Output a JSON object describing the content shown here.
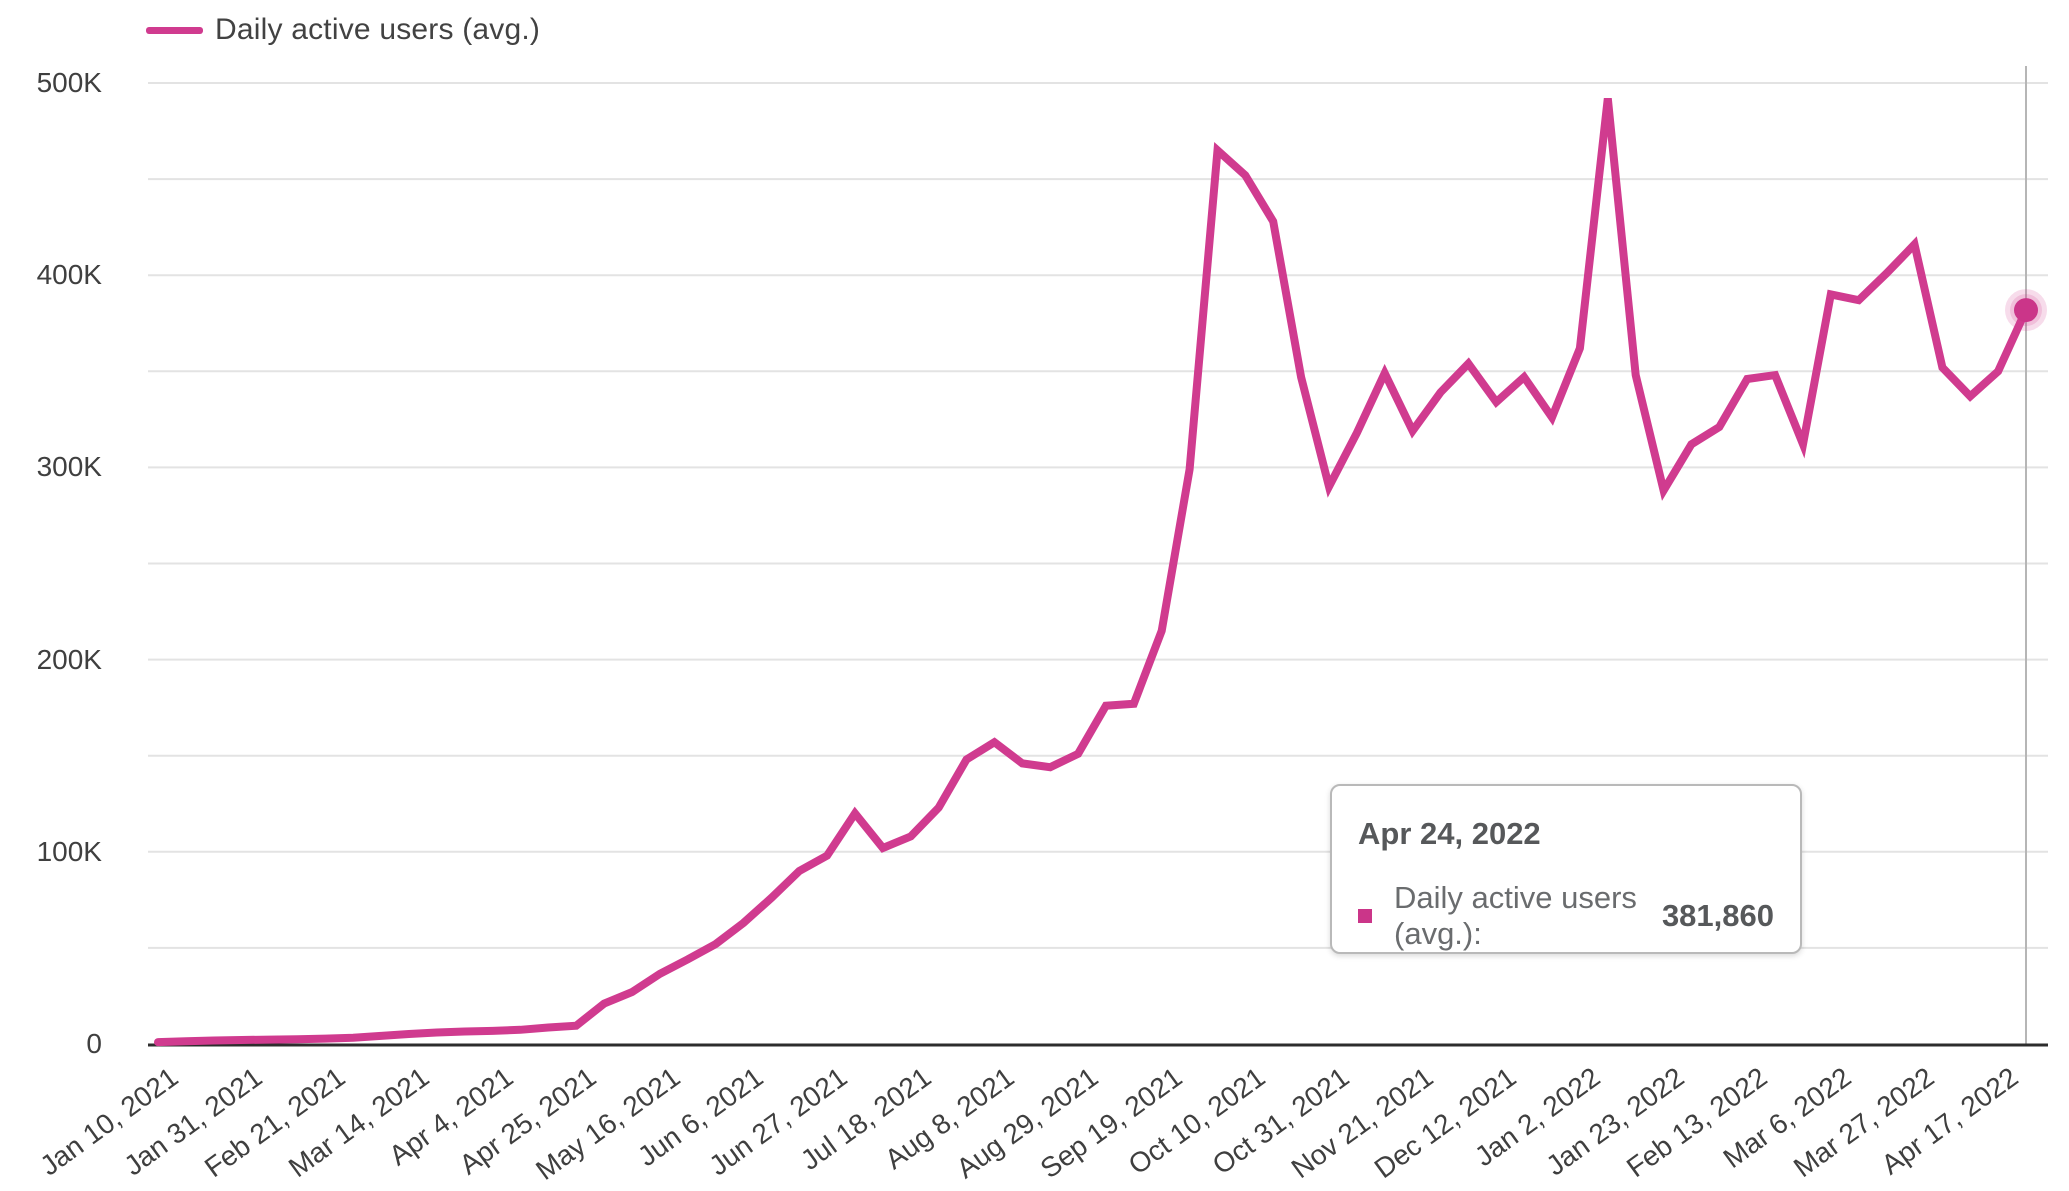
{
  "legend": {
    "label": "Daily active users (avg.)"
  },
  "tooltip": {
    "title": "Apr 24, 2022",
    "series_label": "Daily active users (avg.):",
    "value": "381,860"
  },
  "colors": {
    "line": "#d03b8f",
    "dot": "#cb3589",
    "halo": "rgba(208,59,143,0.18)",
    "grid": "#e3e3e3",
    "axis": "#2d2d2d",
    "crosshair": "#b6b6b6",
    "tick_text": "#3f3f3f"
  },
  "chart_data": {
    "type": "line",
    "title": "",
    "xlabel": "",
    "ylabel": "",
    "legend_position": "top-left",
    "grid": true,
    "ylim": [
      0,
      500000
    ],
    "y_major_step": 100000,
    "y_minor_step": 50000,
    "y_tick_labels": [
      "0",
      "100K",
      "200K",
      "300K",
      "400K",
      "500K"
    ],
    "x_tick_every_n_points": 3,
    "x_tick_labels": [
      "Jan 10, 2021",
      "Jan 31, 2021",
      "Feb 21, 2021",
      "Mar 14, 2021",
      "Apr 4, 2021",
      "Apr 25, 2021",
      "May 16, 2021",
      "Jun 6, 2021",
      "Jun 27, 2021",
      "Jul 18, 2021",
      "Aug 8, 2021",
      "Aug 29, 2021",
      "Sep 19, 2021",
      "Oct 10, 2021",
      "Oct 31, 2021",
      "Nov 21, 2021",
      "Dec 12, 2021",
      "Jan 2, 2022",
      "Jan 23, 2022",
      "Feb 13, 2022",
      "Mar 6, 2022",
      "Mar 27, 2022",
      "Apr 17, 2022"
    ],
    "x": [
      "Jan 10, 2021",
      "Jan 17, 2021",
      "Jan 24, 2021",
      "Jan 31, 2021",
      "Feb 7, 2021",
      "Feb 14, 2021",
      "Feb 21, 2021",
      "Feb 28, 2021",
      "Mar 7, 2021",
      "Mar 14, 2021",
      "Mar 21, 2021",
      "Mar 28, 2021",
      "Apr 4, 2021",
      "Apr 11, 2021",
      "Apr 18, 2021",
      "Apr 25, 2021",
      "May 2, 2021",
      "May 9, 2021",
      "May 16, 2021",
      "May 23, 2021",
      "May 30, 2021",
      "Jun 6, 2021",
      "Jun 13, 2021",
      "Jun 20, 2021",
      "Jun 27, 2021",
      "Jul 4, 2021",
      "Jul 11, 2021",
      "Jul 18, 2021",
      "Jul 25, 2021",
      "Aug 1, 2021",
      "Aug 8, 2021",
      "Aug 15, 2021",
      "Aug 22, 2021",
      "Aug 29, 2021",
      "Sep 5, 2021",
      "Sep 12, 2021",
      "Sep 19, 2021",
      "Sep 26, 2021",
      "Oct 3, 2021",
      "Oct 10, 2021",
      "Oct 17, 2021",
      "Oct 24, 2021",
      "Oct 31, 2021",
      "Nov 7, 2021",
      "Nov 14, 2021",
      "Nov 21, 2021",
      "Nov 28, 2021",
      "Dec 5, 2021",
      "Dec 12, 2021",
      "Dec 19, 2021",
      "Dec 26, 2021",
      "Jan 2, 2022",
      "Jan 9, 2022",
      "Jan 16, 2022",
      "Jan 23, 2022",
      "Jan 30, 2022",
      "Feb 6, 2022",
      "Feb 13, 2022",
      "Feb 20, 2022",
      "Feb 27, 2022",
      "Mar 6, 2022",
      "Mar 13, 2022",
      "Mar 20, 2022",
      "Mar 27, 2022",
      "Apr 3, 2022",
      "Apr 10, 2022",
      "Apr 17, 2022",
      "Apr 24, 2022"
    ],
    "series": [
      {
        "name": "Daily active users (avg.)",
        "values": [
          1000,
          1400,
          1800,
          2100,
          2300,
          2500,
          2800,
          3200,
          4200,
          5200,
          6000,
          6500,
          6800,
          7400,
          8600,
          9500,
          21000,
          27000,
          36500,
          44000,
          52000,
          63000,
          76000,
          90000,
          98000,
          120000,
          102000,
          108000,
          123000,
          148000,
          157000,
          146000,
          144000,
          151000,
          176000,
          177000,
          215000,
          299000,
          465000,
          452000,
          428000,
          347000,
          290000,
          318000,
          349000,
          319000,
          339000,
          354000,
          334000,
          347000,
          326000,
          362000,
          492000,
          348000,
          288000,
          312000,
          321000,
          346000,
          348000,
          312000,
          390000,
          387000,
          401000,
          416000,
          352000,
          337000,
          350000,
          381860
        ]
      }
    ],
    "highlighted_point": {
      "x": "Apr 24, 2022",
      "value": 381860
    }
  }
}
